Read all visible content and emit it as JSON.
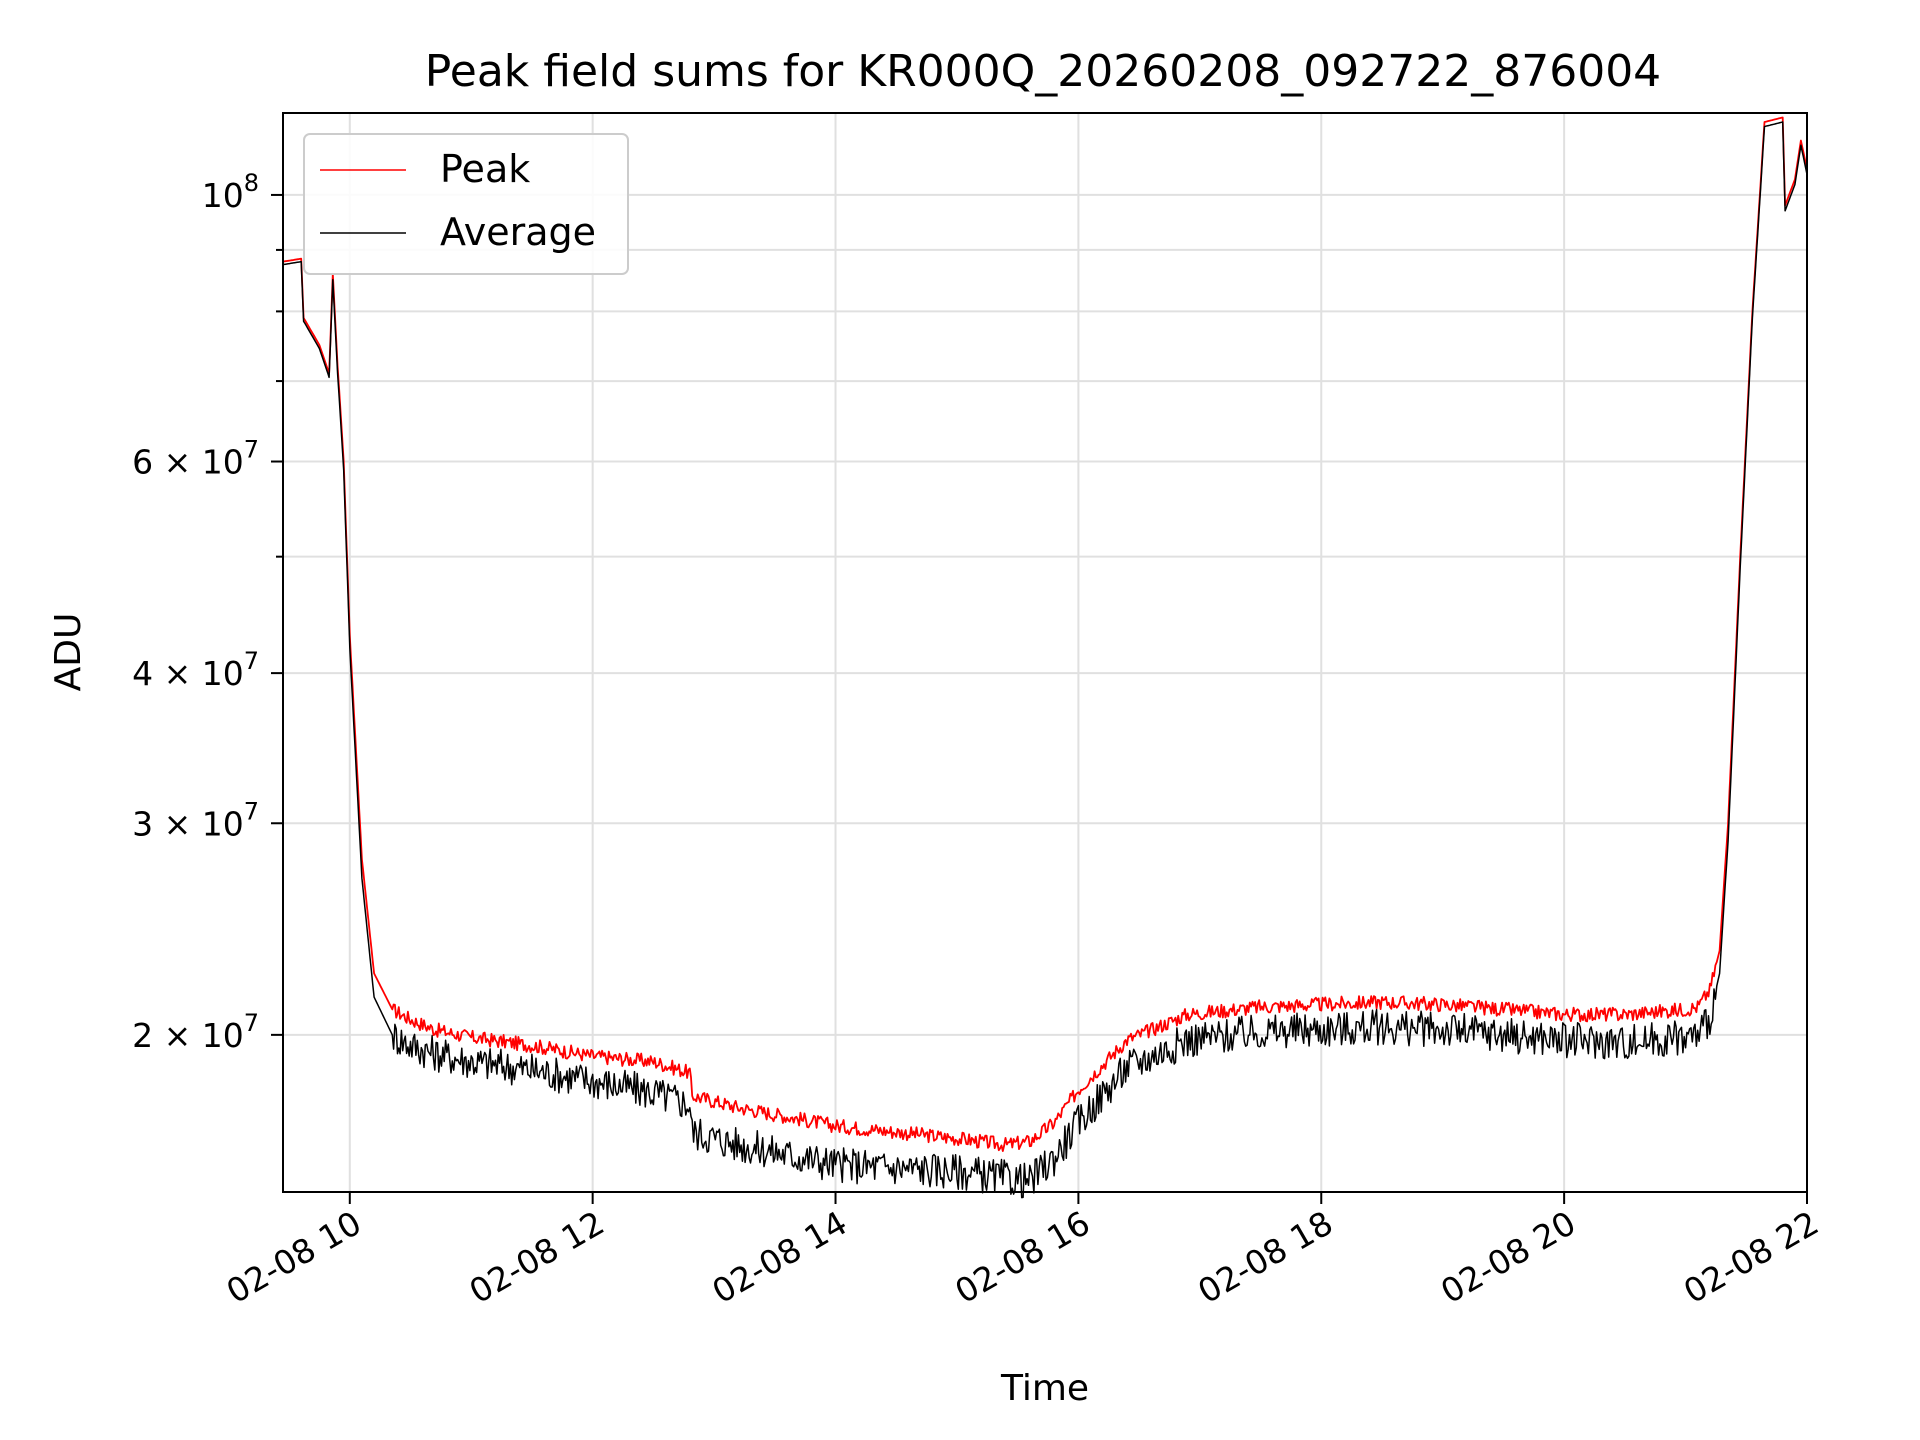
{
  "chart_data": {
    "type": "line",
    "title": "Peak field sums for KR000Q_20260208_092722_876004",
    "xlabel": "Time",
    "ylabel": "ADU",
    "yscale": "log",
    "xlim": [
      9.45,
      22.0
    ],
    "ylim": [
      14800000,
      117000000
    ],
    "grid": true,
    "legend_position": "top-left",
    "x_ticks": [
      {
        "value": 10,
        "label": "02-08 10"
      },
      {
        "value": 12,
        "label": "02-08 12"
      },
      {
        "value": 14,
        "label": "02-08 14"
      },
      {
        "value": 16,
        "label": "02-08 16"
      },
      {
        "value": 18,
        "label": "02-08 18"
      },
      {
        "value": 20,
        "label": "02-08 20"
      },
      {
        "value": 22,
        "label": "02-08 22"
      }
    ],
    "y_major_ticks": [
      {
        "value": 20000000,
        "mantissa": "2",
        "exp": "7"
      },
      {
        "value": 30000000,
        "mantissa": "3",
        "exp": "7"
      },
      {
        "value": 40000000,
        "mantissa": "4",
        "exp": "7"
      },
      {
        "value": 60000000,
        "mantissa": "6",
        "exp": "7"
      },
      {
        "value": 100000000,
        "mantissa": "",
        "exp": "8"
      }
    ],
    "y_minor_ticks": [
      50000000,
      70000000,
      80000000,
      90000000
    ],
    "series": [
      {
        "name": "Peak",
        "color": "#ff0000",
        "x": [
          9.45,
          9.6,
          9.62,
          9.75,
          9.83,
          9.86,
          9.9,
          9.95,
          10.0,
          10.1,
          10.2,
          10.35,
          10.5,
          10.7,
          11.0,
          11.5,
          12.0,
          12.5,
          12.8,
          12.82,
          13.2,
          13.6,
          14.0,
          14.5,
          15.0,
          15.4,
          15.6,
          15.8,
          16.0,
          16.4,
          16.9,
          17.5,
          18.0,
          18.5,
          19.0,
          19.5,
          20.0,
          20.5,
          21.0,
          21.1,
          21.2,
          21.28,
          21.35,
          21.45,
          21.55,
          21.65,
          21.8,
          21.82,
          21.9,
          21.95,
          22.0
        ],
        "y": [
          88000000,
          88500000,
          79000000,
          75000000,
          71000000,
          86000000,
          72000000,
          60000000,
          43000000,
          28000000,
          22500000,
          21000000,
          20600000,
          20200000,
          19900000,
          19600000,
          19200000,
          19000000,
          18600000,
          17800000,
          17400000,
          17100000,
          16800000,
          16600000,
          16400000,
          16200000,
          16300000,
          16900000,
          18000000,
          19800000,
          20800000,
          21100000,
          21200000,
          21300000,
          21200000,
          21000000,
          20800000,
          20800000,
          21000000,
          21100000,
          21800000,
          23500000,
          30000000,
          50000000,
          80000000,
          115000000,
          116000000,
          98000000,
          103000000,
          111000000,
          105000000
        ]
      },
      {
        "name": "Average",
        "color": "#000000",
        "x": [
          9.45,
          9.6,
          9.62,
          9.75,
          9.83,
          9.86,
          9.9,
          9.95,
          10.0,
          10.1,
          10.2,
          10.35,
          10.5,
          10.7,
          11.0,
          11.5,
          12.0,
          12.5,
          12.8,
          12.82,
          13.2,
          13.6,
          14.0,
          14.5,
          15.0,
          15.4,
          15.6,
          15.8,
          16.0,
          16.4,
          16.9,
          17.5,
          18.0,
          18.5,
          19.0,
          19.5,
          20.0,
          20.5,
          21.0,
          21.1,
          21.2,
          21.28,
          21.35,
          21.45,
          21.55,
          21.65,
          21.8,
          21.82,
          21.9,
          21.95,
          22.0
        ],
        "y": [
          87500000,
          88000000,
          78500000,
          74500000,
          70500000,
          85000000,
          71000000,
          59000000,
          42000000,
          27000000,
          21500000,
          20000000,
          19600000,
          19300000,
          19000000,
          18700000,
          18300000,
          17900000,
          17500000,
          16600000,
          16200000,
          15900000,
          15600000,
          15500000,
          15400000,
          15200000,
          15100000,
          15800000,
          16900000,
          18800000,
          19800000,
          20100000,
          20200000,
          20300000,
          20200000,
          20000000,
          19800000,
          19700000,
          19900000,
          20000000,
          20700000,
          22500000,
          29000000,
          49000000,
          79000000,
          114000000,
          115000000,
          97000000,
          102000000,
          110000000,
          104000000
        ]
      }
    ]
  }
}
